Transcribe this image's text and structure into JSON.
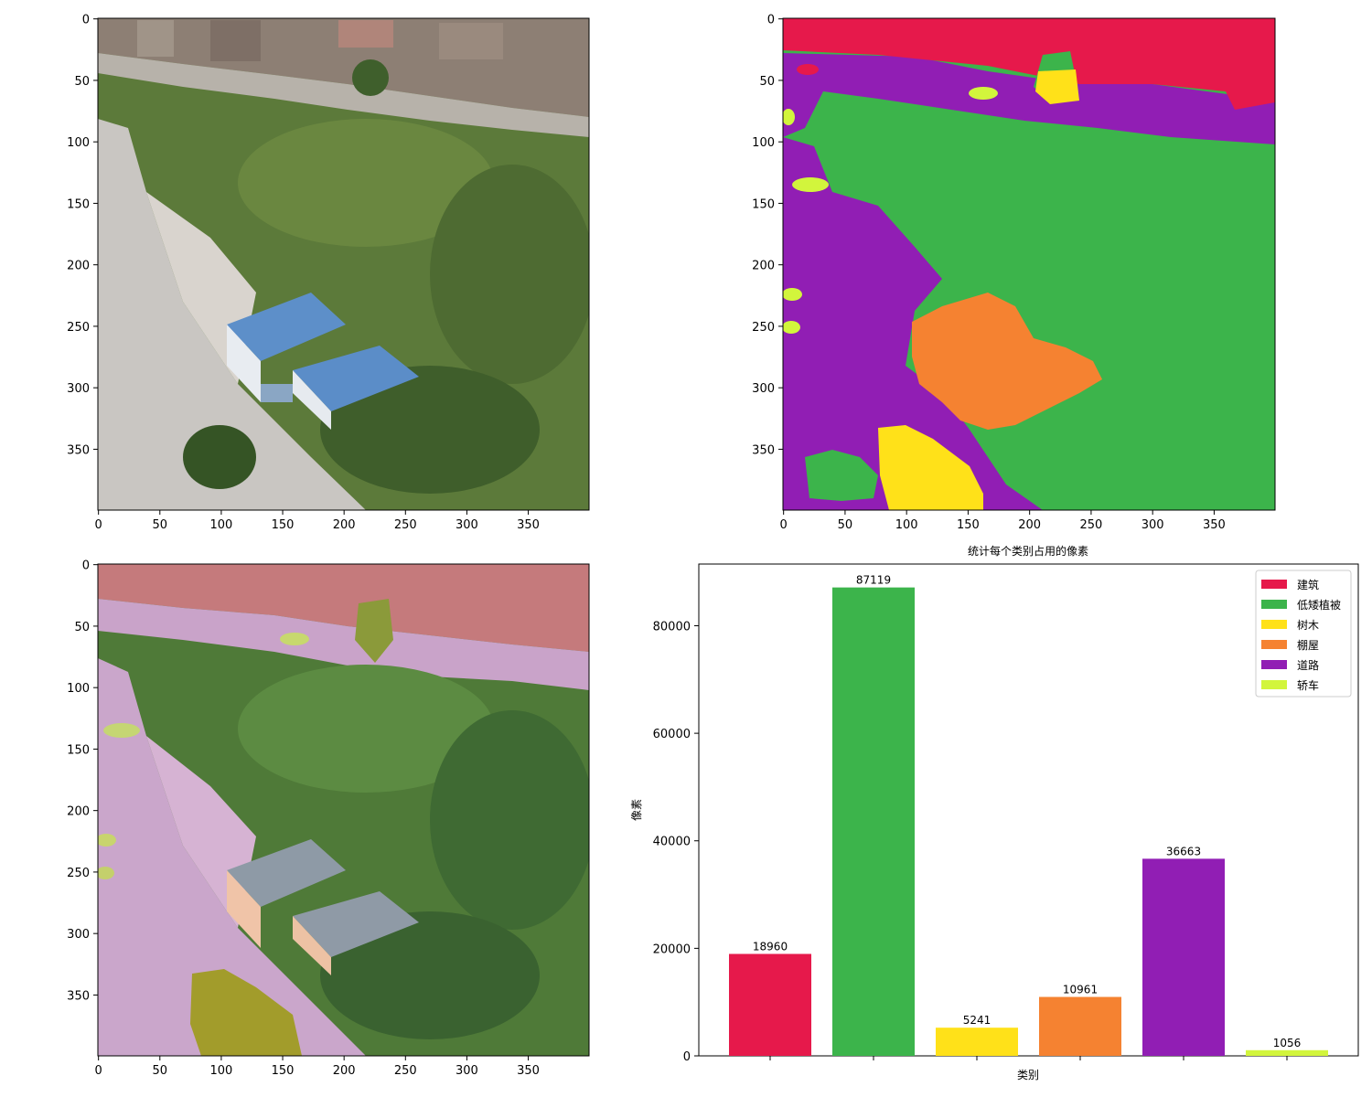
{
  "panels": {
    "image_axis_ticks": [
      "0",
      "50",
      "100",
      "150",
      "200",
      "250",
      "300",
      "350"
    ],
    "image_axis_values": [
      0,
      50,
      100,
      150,
      200,
      250,
      300,
      350
    ],
    "image_size": 400
  },
  "chart_data": {
    "type": "bar",
    "title": "统计每个类别占用的像素",
    "xlabel": "类别",
    "ylabel": "像素",
    "categories": [
      "建筑",
      "低矮植被",
      "树木",
      "棚屋",
      "道路",
      "轿车"
    ],
    "values": [
      18960,
      87119,
      5241,
      10961,
      36663,
      1056
    ],
    "data_labels": [
      "18960",
      "87119",
      "5241",
      "10961",
      "36663",
      "1056"
    ],
    "colors": [
      "#e6194b",
      "#3cb44b",
      "#ffe119",
      "#f58231",
      "#911eb4",
      "#d2f53c"
    ],
    "yticks": [
      "0",
      "20000",
      "40000",
      "60000",
      "80000"
    ],
    "ytick_values": [
      0,
      20000,
      40000,
      60000,
      80000
    ],
    "ylim": [
      0,
      91475
    ],
    "legend_position": "top-right"
  },
  "colors": {
    "building": "#e6194b",
    "low_vegetation": "#3cb44b",
    "tree": "#ffe119",
    "shed": "#f58231",
    "road": "#911eb4",
    "car": "#d2f53c"
  }
}
